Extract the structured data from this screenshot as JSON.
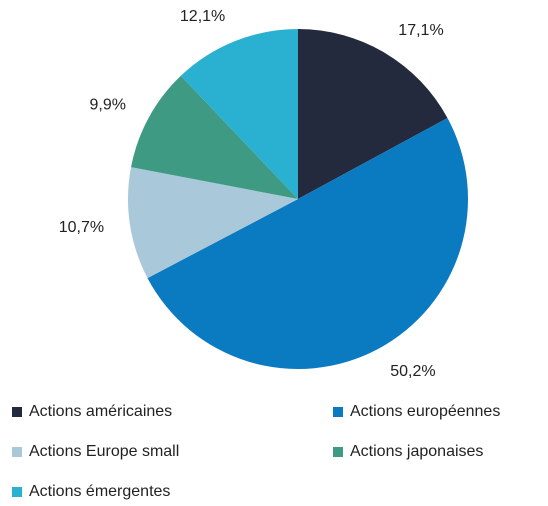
{
  "chart_data": {
    "type": "pie",
    "categories": [
      "Actions américaines",
      "Actions européennes",
      "Actions Europe small",
      "Actions japonaises",
      "Actions émergentes"
    ],
    "values": [
      17.1,
      50.2,
      10.7,
      9.9,
      12.1
    ],
    "value_labels": [
      "17,1%",
      "50,2%",
      "10,7%",
      "9,9%",
      "12,1%"
    ],
    "colors": [
      "#232a3e",
      "#0a7bc1",
      "#a9c8da",
      "#3f9a84",
      "#2ab0d0"
    ],
    "legend": "bottom"
  }
}
